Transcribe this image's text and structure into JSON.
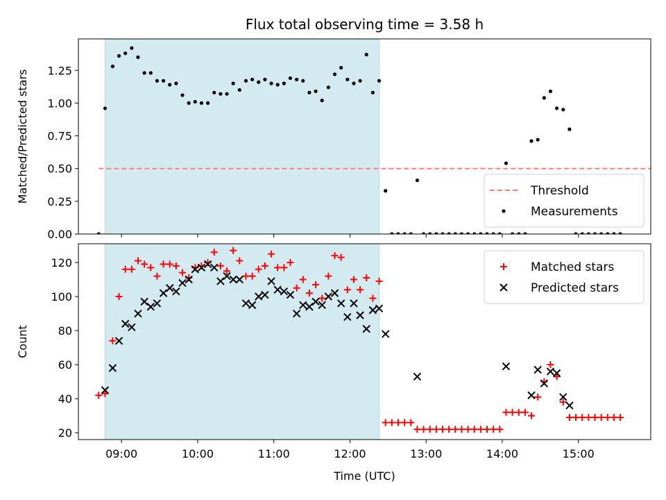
{
  "chart_data": [
    {
      "type": "scatter",
      "title": "Flux total observing time = 3.58 h",
      "ylabel": "Matched/Predicted stars",
      "xlabel": "",
      "ylim": [
        0,
        1.49
      ],
      "xlim": [
        "08:26",
        "15:57"
      ],
      "yticks": [
        "0.00",
        "0.25",
        "0.50",
        "0.75",
        "1.00",
        "1.25"
      ],
      "ytick_values": [
        0,
        0.25,
        0.5,
        0.75,
        1.0,
        1.25
      ],
      "xticks": [
        "09:00",
        "10:00",
        "11:00",
        "12:00",
        "13:00",
        "14:00",
        "15:00"
      ],
      "xtick_values": [
        "09:00",
        "10:00",
        "11:00",
        "12:00",
        "13:00",
        "14:00",
        "15:00"
      ],
      "show_xtick_labels": false,
      "shaded_span": [
        "08:47",
        "12:23"
      ],
      "shade_color": "#d3eaf0",
      "threshold": {
        "name": "Threshold",
        "value": 0.5,
        "x_start": "08:42",
        "x_end": "15:57",
        "color": "#ff7f7f"
      },
      "legend_position": "lower-right",
      "series": [
        {
          "name": "Measurements",
          "marker": "dot",
          "color": "#000000",
          "points": [
            [
              "08:42",
              0.0
            ],
            [
              "08:47",
              0.96
            ],
            [
              "08:53",
              1.28
            ],
            [
              "08:58",
              1.36
            ],
            [
              "09:03",
              1.38
            ],
            [
              "09:08",
              1.42
            ],
            [
              "09:13",
              1.35
            ],
            [
              "09:18",
              1.23
            ],
            [
              "09:23",
              1.23
            ],
            [
              "09:28",
              1.17
            ],
            [
              "09:33",
              1.17
            ],
            [
              "09:38",
              1.14
            ],
            [
              "09:43",
              1.15
            ],
            [
              "09:48",
              1.06
            ],
            [
              "09:53",
              1.0
            ],
            [
              "09:58",
              1.01
            ],
            [
              "10:03",
              1.0
            ],
            [
              "10:08",
              1.0
            ],
            [
              "10:13",
              1.08
            ],
            [
              "10:18",
              1.07
            ],
            [
              "10:23",
              1.07
            ],
            [
              "10:28",
              1.15
            ],
            [
              "10:33",
              1.1
            ],
            [
              "10:38",
              1.17
            ],
            [
              "10:43",
              1.18
            ],
            [
              "10:48",
              1.16
            ],
            [
              "10:53",
              1.18
            ],
            [
              "10:58",
              1.15
            ],
            [
              "11:03",
              1.14
            ],
            [
              "11:08",
              1.15
            ],
            [
              "11:13",
              1.19
            ],
            [
              "11:18",
              1.18
            ],
            [
              "11:23",
              1.17
            ],
            [
              "11:28",
              1.08
            ],
            [
              "11:33",
              1.09
            ],
            [
              "11:38",
              1.02
            ],
            [
              "11:43",
              1.12
            ],
            [
              "11:48",
              1.22
            ],
            [
              "11:53",
              1.27
            ],
            [
              "11:58",
              1.18
            ],
            [
              "12:03",
              1.15
            ],
            [
              "12:08",
              1.17
            ],
            [
              "12:13",
              1.37
            ],
            [
              "12:18",
              1.08
            ],
            [
              "12:23",
              1.17
            ],
            [
              "12:28",
              0.33
            ],
            [
              "12:33",
              0.0
            ],
            [
              "12:38",
              0.0
            ],
            [
              "12:43",
              0.0
            ],
            [
              "12:48",
              0.0
            ],
            [
              "12:53",
              0.41
            ],
            [
              "12:58",
              0.0
            ],
            [
              "13:03",
              0.0
            ],
            [
              "13:08",
              0.0
            ],
            [
              "13:13",
              0.0
            ],
            [
              "13:18",
              0.0
            ],
            [
              "13:23",
              0.0
            ],
            [
              "13:28",
              0.0
            ],
            [
              "13:33",
              0.0
            ],
            [
              "13:38",
              0.0
            ],
            [
              "13:43",
              0.0
            ],
            [
              "13:48",
              0.0
            ],
            [
              "13:53",
              0.0
            ],
            [
              "13:58",
              0.0
            ],
            [
              "14:03",
              0.54
            ],
            [
              "14:08",
              0.0
            ],
            [
              "14:13",
              0.0
            ],
            [
              "14:18",
              0.0
            ],
            [
              "14:23",
              0.71
            ],
            [
              "14:28",
              0.72
            ],
            [
              "14:33",
              1.04
            ],
            [
              "14:38",
              1.09
            ],
            [
              "14:43",
              0.96
            ],
            [
              "14:48",
              0.95
            ],
            [
              "14:53",
              0.8
            ],
            [
              "14:58",
              0.0
            ],
            [
              "15:03",
              0.0
            ],
            [
              "15:08",
              0.0
            ],
            [
              "15:13",
              0.0
            ],
            [
              "15:18",
              0.0
            ],
            [
              "15:23",
              0.0
            ],
            [
              "15:28",
              0.0
            ],
            [
              "15:33",
              0.0
            ]
          ]
        }
      ]
    },
    {
      "type": "scatter",
      "title": "",
      "ylabel": "Count",
      "xlabel": "Time (UTC)",
      "ylim": [
        16,
        131
      ],
      "xlim": [
        "08:26",
        "15:57"
      ],
      "yticks": [
        "20",
        "40",
        "60",
        "80",
        "100",
        "120"
      ],
      "ytick_values": [
        20,
        40,
        60,
        80,
        100,
        120
      ],
      "xticks": [
        "09:00",
        "10:00",
        "11:00",
        "12:00",
        "13:00",
        "14:00",
        "15:00"
      ],
      "xtick_values": [
        "09:00",
        "10:00",
        "11:00",
        "12:00",
        "13:00",
        "14:00",
        "15:00"
      ],
      "show_xtick_labels": true,
      "shaded_span": [
        "08:47",
        "12:23"
      ],
      "shade_color": "#d3eaf0",
      "legend_position": "top-right",
      "series": [
        {
          "name": "Matched stars",
          "marker": "plus",
          "color": "#ff0000",
          "points": [
            [
              "08:42",
              42
            ],
            [
              "08:47",
              43
            ],
            [
              "08:53",
              74
            ],
            [
              "08:58",
              100
            ],
            [
              "09:03",
              116
            ],
            [
              "09:08",
              116
            ],
            [
              "09:13",
              121
            ],
            [
              "09:18",
              119
            ],
            [
              "09:23",
              117
            ],
            [
              "09:28",
              112
            ],
            [
              "09:33",
              119
            ],
            [
              "09:38",
              119
            ],
            [
              "09:43",
              118
            ],
            [
              "09:48",
              114
            ],
            [
              "09:53",
              111
            ],
            [
              "09:58",
              117
            ],
            [
              "10:03",
              118
            ],
            [
              "10:08",
              120
            ],
            [
              "10:13",
              126
            ],
            [
              "10:18",
              118
            ],
            [
              "10:23",
              115
            ],
            [
              "10:28",
              127
            ],
            [
              "10:33",
              121
            ],
            [
              "10:38",
              112
            ],
            [
              "10:43",
              112
            ],
            [
              "10:48",
              116
            ],
            [
              "10:53",
              118
            ],
            [
              "10:58",
              125
            ],
            [
              "11:03",
              117
            ],
            [
              "11:08",
              117
            ],
            [
              "11:13",
              120
            ],
            [
              "11:18",
              105
            ],
            [
              "11:23",
              110
            ],
            [
              "11:28",
              102
            ],
            [
              "11:33",
              107
            ],
            [
              "11:38",
              99
            ],
            [
              "11:43",
              112
            ],
            [
              "11:48",
              124
            ],
            [
              "11:53",
              123
            ],
            [
              "11:58",
              104
            ],
            [
              "12:03",
              110
            ],
            [
              "12:08",
              104
            ],
            [
              "12:13",
              111
            ],
            [
              "12:18",
              99
            ],
            [
              "12:23",
              109
            ],
            [
              "12:28",
              26
            ],
            [
              "12:33",
              26
            ],
            [
              "12:38",
              26
            ],
            [
              "12:43",
              26
            ],
            [
              "12:48",
              26
            ],
            [
              "12:53",
              22
            ],
            [
              "12:58",
              22
            ],
            [
              "13:03",
              22
            ],
            [
              "13:08",
              22
            ],
            [
              "13:13",
              22
            ],
            [
              "13:18",
              22
            ],
            [
              "13:23",
              22
            ],
            [
              "13:28",
              22
            ],
            [
              "13:33",
              22
            ],
            [
              "13:38",
              22
            ],
            [
              "13:43",
              22
            ],
            [
              "13:48",
              22
            ],
            [
              "13:53",
              22
            ],
            [
              "13:58",
              22
            ],
            [
              "14:03",
              32
            ],
            [
              "14:08",
              32
            ],
            [
              "14:13",
              32
            ],
            [
              "14:18",
              32
            ],
            [
              "14:23",
              30
            ],
            [
              "14:28",
              41
            ],
            [
              "14:33",
              50
            ],
            [
              "14:38",
              60
            ],
            [
              "14:43",
              53
            ],
            [
              "14:48",
              38
            ],
            [
              "14:53",
              29
            ],
            [
              "14:58",
              29
            ],
            [
              "15:03",
              29
            ],
            [
              "15:08",
              29
            ],
            [
              "15:13",
              29
            ],
            [
              "15:18",
              29
            ],
            [
              "15:23",
              29
            ],
            [
              "15:28",
              29
            ],
            [
              "15:33",
              29
            ]
          ]
        },
        {
          "name": "Predicted stars",
          "marker": "x",
          "color": "#000000",
          "points": [
            [
              "08:47",
              45
            ],
            [
              "08:53",
              58
            ],
            [
              "08:58",
              74
            ],
            [
              "09:03",
              84
            ],
            [
              "09:08",
              82
            ],
            [
              "09:13",
              90
            ],
            [
              "09:18",
              97
            ],
            [
              "09:23",
              94
            ],
            [
              "09:28",
              96
            ],
            [
              "09:33",
              102
            ],
            [
              "09:38",
              105
            ],
            [
              "09:43",
              103
            ],
            [
              "09:48",
              108
            ],
            [
              "09:53",
              110
            ],
            [
              "09:58",
              116
            ],
            [
              "10:03",
              117
            ],
            [
              "10:08",
              119
            ],
            [
              "10:13",
              117
            ],
            [
              "10:18",
              109
            ],
            [
              "10:23",
              112
            ],
            [
              "10:28",
              110
            ],
            [
              "10:33",
              110
            ],
            [
              "10:38",
              96
            ],
            [
              "10:43",
              95
            ],
            [
              "10:48",
              100
            ],
            [
              "10:53",
              101
            ],
            [
              "10:58",
              109
            ],
            [
              "11:03",
              104
            ],
            [
              "11:08",
              103
            ],
            [
              "11:13",
              101
            ],
            [
              "11:18",
              90
            ],
            [
              "11:23",
              95
            ],
            [
              "11:28",
              94
            ],
            [
              "11:33",
              97
            ],
            [
              "11:38",
              95
            ],
            [
              "11:43",
              100
            ],
            [
              "11:48",
              102
            ],
            [
              "11:53",
              96
            ],
            [
              "11:58",
              88
            ],
            [
              "12:03",
              96
            ],
            [
              "12:08",
              89
            ],
            [
              "12:13",
              81
            ],
            [
              "12:18",
              92
            ],
            [
              "12:23",
              93
            ],
            [
              "12:28",
              78
            ],
            [
              "12:53",
              53
            ],
            [
              "14:03",
              59
            ],
            [
              "14:23",
              42
            ],
            [
              "14:28",
              57
            ],
            [
              "14:33",
              49
            ],
            [
              "14:38",
              56
            ],
            [
              "14:43",
              55
            ],
            [
              "14:48",
              41
            ],
            [
              "14:53",
              36
            ]
          ]
        }
      ]
    }
  ]
}
